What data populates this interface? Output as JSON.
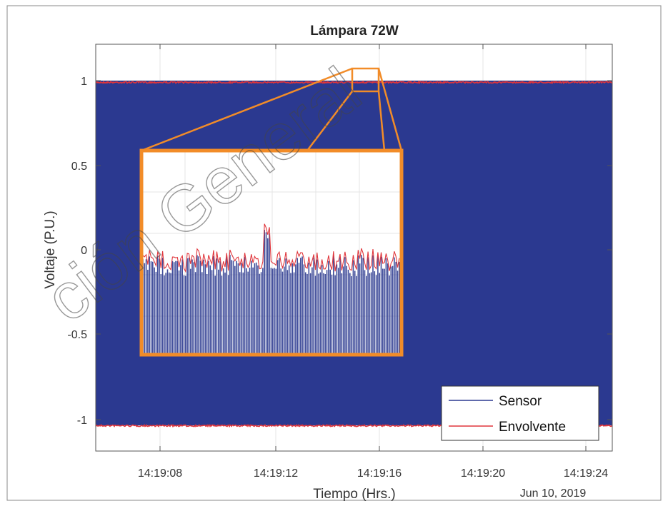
{
  "chart_data": {
    "type": "line",
    "title": "Lámpara 72W",
    "xlabel": "Tiempo (Hrs.)",
    "ylabel": "Voltaje (P.U.)",
    "date_label": "Jun 10, 2019",
    "x_ticks": [
      "14:19:08",
      "14:19:12",
      "14:19:16",
      "14:19:20",
      "14:19:24"
    ],
    "y_ticks": [
      "1",
      "0.5",
      "0",
      "-0.5",
      "-1"
    ],
    "xlim": [
      "14:19:05",
      "14:19:25"
    ],
    "ylim": [
      -1.2,
      1.2
    ],
    "grid": true,
    "legend_position": "bottom-right",
    "series": [
      {
        "name": "Sensor",
        "color": "#2b3990",
        "amplitude": 0.98
      },
      {
        "name": "Envolvente",
        "color": "#e0353b",
        "upper": 0.99,
        "lower": -1.04
      }
    ],
    "inset": {
      "description_zoom_x": [
        "14:19:15",
        "14:19:16"
      ],
      "description_zoom_y": [
        0.93,
        1.07
      ],
      "border_color": "#f28c28"
    },
    "watermark": "ción General"
  }
}
